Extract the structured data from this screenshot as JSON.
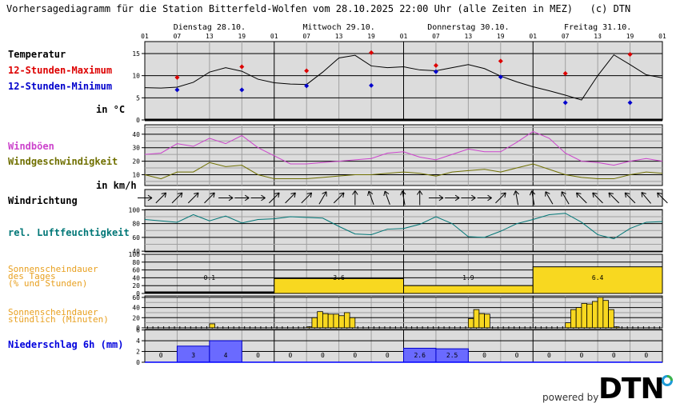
{
  "header": {
    "title": "Vorhersagediagramm für die Station Bitterfeld-Wolfen vom 28.10.2025 22:00 Uhr (alle Zeiten in MEZ)   (c) DTN"
  },
  "days": [
    "Dienstag 28.10.",
    "Mittwoch 29.10.",
    "Donnerstag 30.10.",
    "Freitag 31.10."
  ],
  "hour_ticks": [
    "01",
    "07",
    "13",
    "19",
    "01",
    "07",
    "13",
    "19",
    "01",
    "07",
    "13",
    "19",
    "01",
    "07",
    "13",
    "19",
    "01"
  ],
  "labels": {
    "temperatur": "Temperatur",
    "max": "12-Stunden-Maximum",
    "min": "12-Stunden-Minimum",
    "temp_unit": "in °C",
    "boeen": "Windböen",
    "windgeschw": "Windgeschwindigkeit",
    "wind_unit": "in km/h",
    "windrichtung": "Windrichtung",
    "feuchte": "rel. Luftfeuchtigkeit",
    "sonne_tag_1": "Sonnenscheindauer",
    "sonne_tag_2": "des Tages",
    "sonne_tag_3": "(% und Stunden)",
    "sonne_std_1": "Sonnenscheindauer",
    "sonne_std_2": "stündlich (Minuten)",
    "niederschlag": "Niederschlag 6h (mm)"
  },
  "colors": {
    "temperature": "#000000",
    "max": "#dd0000",
    "min": "#0000cc",
    "gusts": "#cc44cc",
    "wind": "#707000",
    "humidity": "#007777",
    "sunshine_label": "#e8a020",
    "sunshine_bar": "#f8d820",
    "precip_label": "#0000dd",
    "precip_bar": "#6a6aff",
    "plot_bg": "#dcdcdc"
  },
  "footer": {
    "powered_by": "powered by",
    "brand": "DTN"
  },
  "chart_data": [
    {
      "type": "line",
      "title": "Temperatur",
      "ylabel": "in °C",
      "ylim": [
        0,
        17
      ],
      "yticks": [
        0,
        5,
        10,
        15
      ],
      "x_hours_from_start": [
        0,
        3,
        6,
        9,
        12,
        15,
        18,
        21,
        24,
        27,
        30,
        33,
        36,
        39,
        42,
        45,
        48,
        51,
        54,
        57,
        60,
        63,
        66,
        69,
        72,
        75,
        78,
        81,
        84,
        87,
        90,
        93,
        96
      ],
      "series": [
        {
          "name": "Temperatur",
          "values": [
            7.3,
            7.2,
            7.4,
            8.5,
            10.8,
            11.8,
            11.0,
            9.2,
            8.4,
            8.1,
            8.0,
            10.8,
            14.0,
            14.6,
            12.2,
            11.8,
            12.0,
            11.3,
            11.1,
            11.8,
            12.5,
            11.6,
            9.9,
            8.6,
            7.5,
            6.6,
            5.6,
            4.5,
            10.0,
            14.7,
            12.5,
            10.2,
            9.5
          ]
        }
      ],
      "markers": {
        "12-Stunden-Maximum": [
          {
            "hour": 6,
            "value": 9.6
          },
          {
            "hour": 18,
            "value": 12.0
          },
          {
            "hour": 30,
            "value": 11.1
          },
          {
            "hour": 42,
            "value": 15.2
          },
          {
            "hour": 54,
            "value": 12.3
          },
          {
            "hour": 66,
            "value": 13.3
          },
          {
            "hour": 78,
            "value": 10.5
          },
          {
            "hour": 90,
            "value": 14.8
          }
        ],
        "12-Stunden-Minimum": [
          {
            "hour": 6,
            "value": 6.8
          },
          {
            "hour": 18,
            "value": 6.8
          },
          {
            "hour": 30,
            "value": 7.7
          },
          {
            "hour": 42,
            "value": 7.8
          },
          {
            "hour": 54,
            "value": 10.9
          },
          {
            "hour": 66,
            "value": 9.7
          },
          {
            "hour": 78,
            "value": 3.9
          },
          {
            "hour": 90,
            "value": 3.9
          }
        ]
      }
    },
    {
      "type": "line",
      "title": "Wind",
      "ylabel": "in km/h",
      "ylim": [
        2,
        47
      ],
      "yticks": [
        10,
        20,
        30,
        40
      ],
      "x_hours_from_start": [
        0,
        3,
        6,
        9,
        12,
        15,
        18,
        21,
        24,
        27,
        30,
        33,
        36,
        39,
        42,
        45,
        48,
        51,
        54,
        57,
        60,
        63,
        66,
        69,
        72,
        75,
        78,
        81,
        84,
        87,
        90,
        93,
        96
      ],
      "series": [
        {
          "name": "Windböen",
          "values": [
            25,
            26,
            33,
            31,
            37,
            33,
            39,
            30,
            24,
            18,
            18,
            19,
            20,
            21,
            22,
            26,
            27,
            23,
            21,
            25,
            29,
            27,
            27,
            34,
            42,
            37,
            26,
            20,
            19,
            17,
            20,
            22,
            20
          ]
        },
        {
          "name": "Windgeschwindigkeit",
          "values": [
            10,
            7,
            12,
            12,
            19,
            16,
            17,
            10,
            7,
            7,
            7,
            8,
            9,
            10,
            10,
            11,
            12,
            11,
            9,
            12,
            13,
            14,
            12,
            15,
            18,
            14,
            10,
            8,
            7,
            7,
            10,
            12,
            11
          ]
        }
      ]
    },
    {
      "type": "table",
      "title": "Windrichtung",
      "x_hours_from_start": [
        0,
        3,
        6,
        9,
        12,
        15,
        18,
        21,
        24,
        27,
        30,
        33,
        36,
        39,
        42,
        45,
        48,
        51,
        54,
        57,
        60,
        63,
        66,
        69,
        72,
        75,
        78,
        81,
        84,
        87,
        90,
        93,
        96
      ],
      "directions_deg_to": [
        90,
        45,
        45,
        45,
        45,
        90,
        90,
        90,
        45,
        45,
        45,
        30,
        45,
        0,
        340,
        340,
        350,
        0,
        90,
        90,
        90,
        90,
        45,
        350,
        350,
        330,
        330,
        315,
        315,
        315,
        315,
        320,
        315
      ]
    },
    {
      "type": "line",
      "title": "rel. Luftfeuchtigkeit",
      "ylim": [
        40,
        100
      ],
      "yticks": [
        40,
        60,
        80,
        100
      ],
      "x_hours_from_start": [
        0,
        3,
        6,
        9,
        12,
        15,
        18,
        21,
        24,
        27,
        30,
        33,
        36,
        39,
        42,
        45,
        48,
        51,
        54,
        57,
        60,
        63,
        66,
        69,
        72,
        75,
        78,
        81,
        84,
        87,
        90,
        93,
        96
      ],
      "series": [
        {
          "name": "rel. Luftfeuchtigkeit",
          "values": [
            86,
            84,
            82,
            93,
            84,
            91,
            81,
            86,
            87,
            90,
            89,
            88,
            76,
            65,
            64,
            72,
            73,
            79,
            90,
            80,
            61,
            60,
            69,
            80,
            86,
            93,
            95,
            82,
            64,
            58,
            73,
            82,
            83
          ]
        }
      ]
    },
    {
      "type": "bar",
      "title": "Sonnenscheindauer des Tages (% und Stunden)",
      "ylim": [
        0,
        100
      ],
      "yticks": [
        0,
        20,
        40,
        60,
        80,
        100
      ],
      "categories": [
        "Dienstag 28.10.",
        "Mittwoch 29.10.",
        "Donnerstag 30.10.",
        "Freitag 31.10."
      ],
      "values_percent": [
        1,
        38,
        20,
        68
      ],
      "values_hours": [
        0.1,
        3.6,
        1.9,
        6.4
      ]
    },
    {
      "type": "bar",
      "title": "Sonnenscheindauer stündlich (Minuten)",
      "ylim": [
        0,
        60
      ],
      "yticks": [
        0,
        20,
        40,
        60
      ],
      "bars": [
        {
          "hour": 12,
          "value": 8
        },
        {
          "hour": 30,
          "value": 2
        },
        {
          "hour": 31,
          "value": 20
        },
        {
          "hour": 32,
          "value": 32
        },
        {
          "hour": 33,
          "value": 28
        },
        {
          "hour": 34,
          "value": 27
        },
        {
          "hour": 35,
          "value": 27
        },
        {
          "hour": 36,
          "value": 24
        },
        {
          "hour": 37,
          "value": 30
        },
        {
          "hour": 38,
          "value": 20
        },
        {
          "hour": 60,
          "value": 18
        },
        {
          "hour": 61,
          "value": 36
        },
        {
          "hour": 62,
          "value": 28
        },
        {
          "hour": 63,
          "value": 27
        },
        {
          "hour": 78,
          "value": 10
        },
        {
          "hour": 79,
          "value": 36
        },
        {
          "hour": 80,
          "value": 40
        },
        {
          "hour": 81,
          "value": 48
        },
        {
          "hour": 82,
          "value": 47
        },
        {
          "hour": 83,
          "value": 52
        },
        {
          "hour": 84,
          "value": 60
        },
        {
          "hour": 85,
          "value": 54
        },
        {
          "hour": 86,
          "value": 36
        },
        {
          "hour": 87,
          "value": 2
        }
      ]
    },
    {
      "type": "bar",
      "title": "Niederschlag 6h (mm)",
      "ylim": [
        0,
        6
      ],
      "yticks": [
        0,
        2,
        4,
        6
      ],
      "categories": [
        "01-07",
        "07-13",
        "13-19",
        "19-01",
        "01-07",
        "07-13",
        "13-19",
        "19-01",
        "01-07",
        "07-13",
        "13-19",
        "19-01",
        "01-07",
        "07-13",
        "13-19",
        "19-01"
      ],
      "values": [
        0,
        3,
        4,
        0,
        0,
        0,
        0,
        0,
        2.6,
        2.5,
        0,
        0,
        0,
        0,
        0,
        0
      ],
      "value_labels": [
        "0",
        "3",
        "4",
        "0",
        "0",
        "0",
        "0",
        "0",
        "2.6",
        "2.5",
        "0",
        "0",
        "0",
        "0",
        "0",
        "0"
      ]
    }
  ]
}
